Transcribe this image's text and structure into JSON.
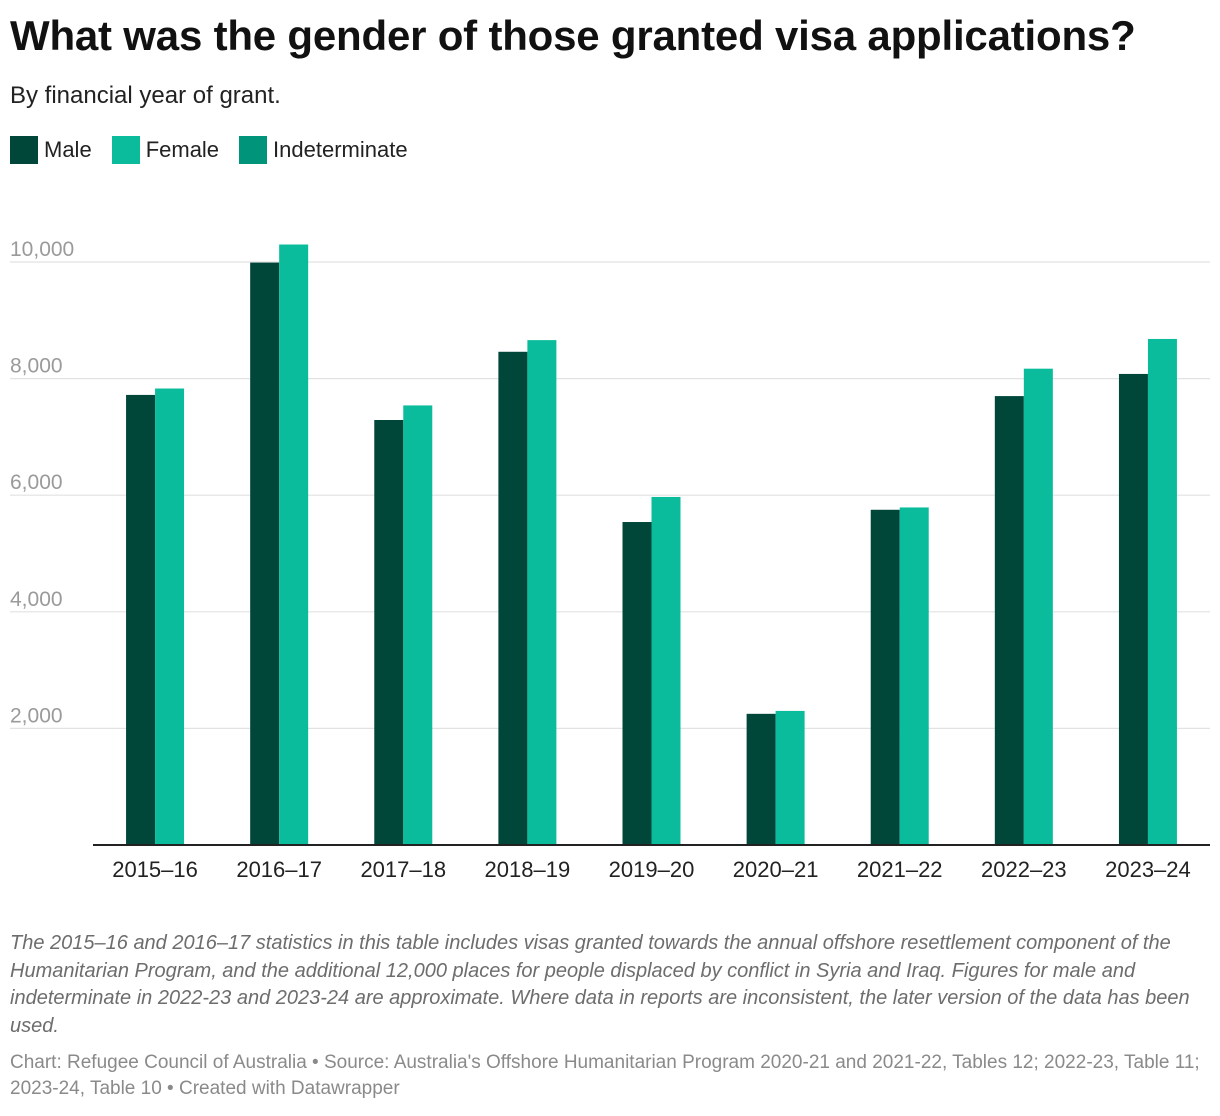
{
  "title": "What was the gender of those granted visa applications?",
  "subtitle": "By financial year of grant.",
  "legend": [
    {
      "name": "Male",
      "color": "#00473a"
    },
    {
      "name": "Female",
      "color": "#0abc9c"
    },
    {
      "name": "Indeterminate",
      "color": "#00957a"
    }
  ],
  "chart_data": {
    "type": "bar",
    "title": "What was the gender of those granted visa applications?",
    "subtitle": "By financial year of grant.",
    "xlabel": "",
    "ylabel": "",
    "ylim": [
      0,
      10300
    ],
    "yticks": [
      2000,
      4000,
      6000,
      8000,
      10000
    ],
    "ytick_labels": [
      "2,000",
      "4,000",
      "6,000",
      "8,000",
      "10,000"
    ],
    "grid": true,
    "legend_position": "top-left",
    "categories": [
      "2015–16",
      "2016–17",
      "2017–18",
      "2018–19",
      "2019–20",
      "2020–21",
      "2021–22",
      "2022–23",
      "2023–24"
    ],
    "series": [
      {
        "name": "Male",
        "color": "#00473a",
        "values": [
          7720,
          9990,
          7290,
          8460,
          5540,
          2250,
          5750,
          7700,
          8080
        ]
      },
      {
        "name": "Female",
        "color": "#0abc9c",
        "values": [
          7830,
          10300,
          7540,
          8660,
          5970,
          2300,
          5790,
          8170,
          8680
        ]
      },
      {
        "name": "Indeterminate",
        "color": "#00957a",
        "values": [
          0,
          0,
          0,
          0,
          0,
          0,
          0,
          0,
          0
        ]
      }
    ]
  },
  "notes": "The 2015–16 and 2016–17 statistics in this table includes visas granted towards the annual offshore resettlement component of the Humanitarian Program, and the additional 12,000 places for people displaced by conflict in Syria and Iraq. Figures for male and indeterminate in 2022-23 and 2023-24 are approximate. Where data in reports are inconsistent, the later version of the data has been used.",
  "credit": "Chart: Refugee Council of Australia • Source: Australia's Offshore Humanitarian Program 2020-21 and 2021-22, Tables 12; 2022-23, Table 11; 2023-24, Table 10 • Created with Datawrapper"
}
